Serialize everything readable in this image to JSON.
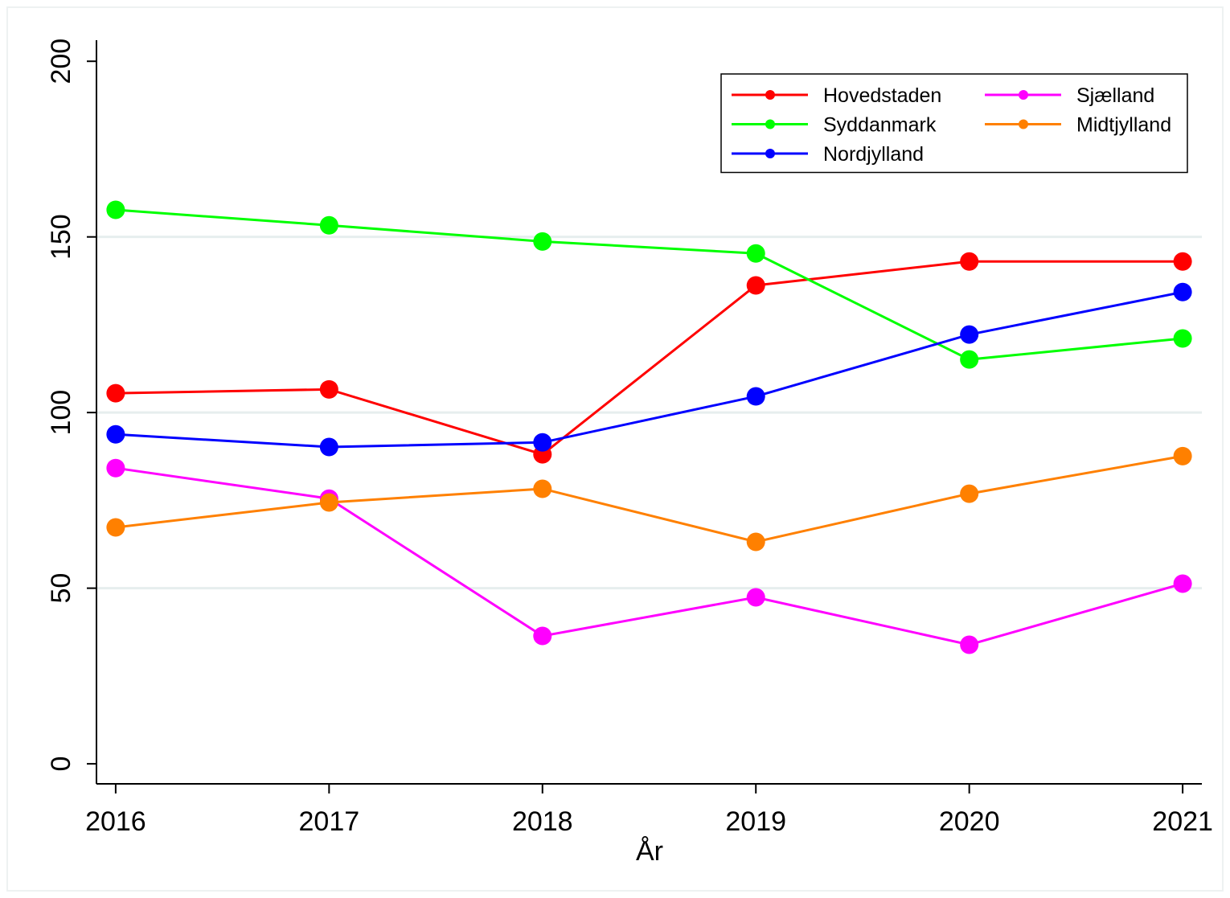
{
  "chart_data": {
    "type": "line",
    "x_label": "År",
    "x": [
      2016,
      2017,
      2018,
      2019,
      2020,
      2021
    ],
    "xlim": [
      2015.91,
      2021.09
    ],
    "xticks": [
      2016,
      2017,
      2018,
      2019,
      2020,
      2021
    ],
    "ylim": [
      -5.7,
      206
    ],
    "yticks": [
      0,
      50,
      100,
      150,
      200
    ],
    "grid": true,
    "legend_position": "top right",
    "series": [
      {
        "name": "Hovedstaden",
        "color": "#ff0000",
        "values": [
          105.5,
          106.6,
          88.1,
          136.2,
          143.0,
          143.0
        ]
      },
      {
        "name": "Sjælland",
        "color": "#ff00ff",
        "values": [
          84.2,
          75.5,
          36.4,
          47.4,
          33.9,
          51.3
        ]
      },
      {
        "name": "Syddanmark",
        "color": "#00ff00",
        "values": [
          157.7,
          153.3,
          148.7,
          145.3,
          115.1,
          121.1
        ]
      },
      {
        "name": "Midtjylland",
        "color": "#ff8000",
        "values": [
          67.3,
          74.4,
          78.3,
          63.2,
          76.9,
          87.6
        ]
      },
      {
        "name": "Nordjylland",
        "color": "#0000ff",
        "values": [
          93.8,
          90.2,
          91.5,
          104.6,
          122.2,
          134.3
        ]
      }
    ]
  }
}
